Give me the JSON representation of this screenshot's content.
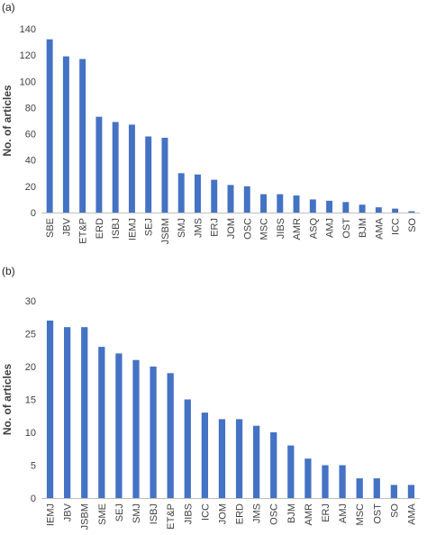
{
  "colors": {
    "bar": "#4472c4",
    "axis": "#bfbfbf",
    "text": "#404040"
  },
  "chart_data": [
    {
      "panel": "(a)",
      "type": "bar",
      "ylabel": "No. of articles",
      "xlabel": "",
      "ylim": [
        0,
        140
      ],
      "yticks": [
        0,
        20,
        40,
        60,
        80,
        100,
        120,
        140
      ],
      "grid": false,
      "categories": [
        "SBE",
        "JBV",
        "ET&P",
        "ERD",
        "ISBJ",
        "IEMJ",
        "SEJ",
        "JSBM",
        "SMJ",
        "JMS",
        "ERJ",
        "JOM",
        "OSC",
        "MSC",
        "JIBS",
        "AMR",
        "ASQ",
        "AMJ",
        "OST",
        "BJM",
        "AMA",
        "ICC",
        "SO"
      ],
      "values": [
        132,
        119,
        117,
        73,
        69,
        67,
        58,
        57,
        30,
        29,
        25,
        21,
        20,
        14,
        14,
        13,
        10,
        9,
        8,
        6,
        4,
        3,
        1
      ]
    },
    {
      "panel": "(b)",
      "type": "bar",
      "ylabel": "No. of articles",
      "xlabel": "",
      "ylim": [
        0,
        30
      ],
      "yticks": [
        0,
        5,
        10,
        15,
        20,
        25,
        30
      ],
      "grid": false,
      "categories": [
        "IEMJ",
        "JBV",
        "JSBM",
        "SME",
        "SEJ",
        "SMJ",
        "ISBJ",
        "ET&P",
        "JIBS",
        "ICC",
        "JOM",
        "ERD",
        "JMS",
        "OSC",
        "BJM",
        "AMR",
        "ERJ",
        "AMJ",
        "MSC",
        "OST",
        "SO",
        "AMA"
      ],
      "values": [
        27,
        26,
        26,
        23,
        22,
        21,
        20,
        19,
        15,
        13,
        12,
        12,
        11,
        10,
        8,
        6,
        5,
        5,
        3,
        3,
        2,
        2
      ]
    }
  ]
}
